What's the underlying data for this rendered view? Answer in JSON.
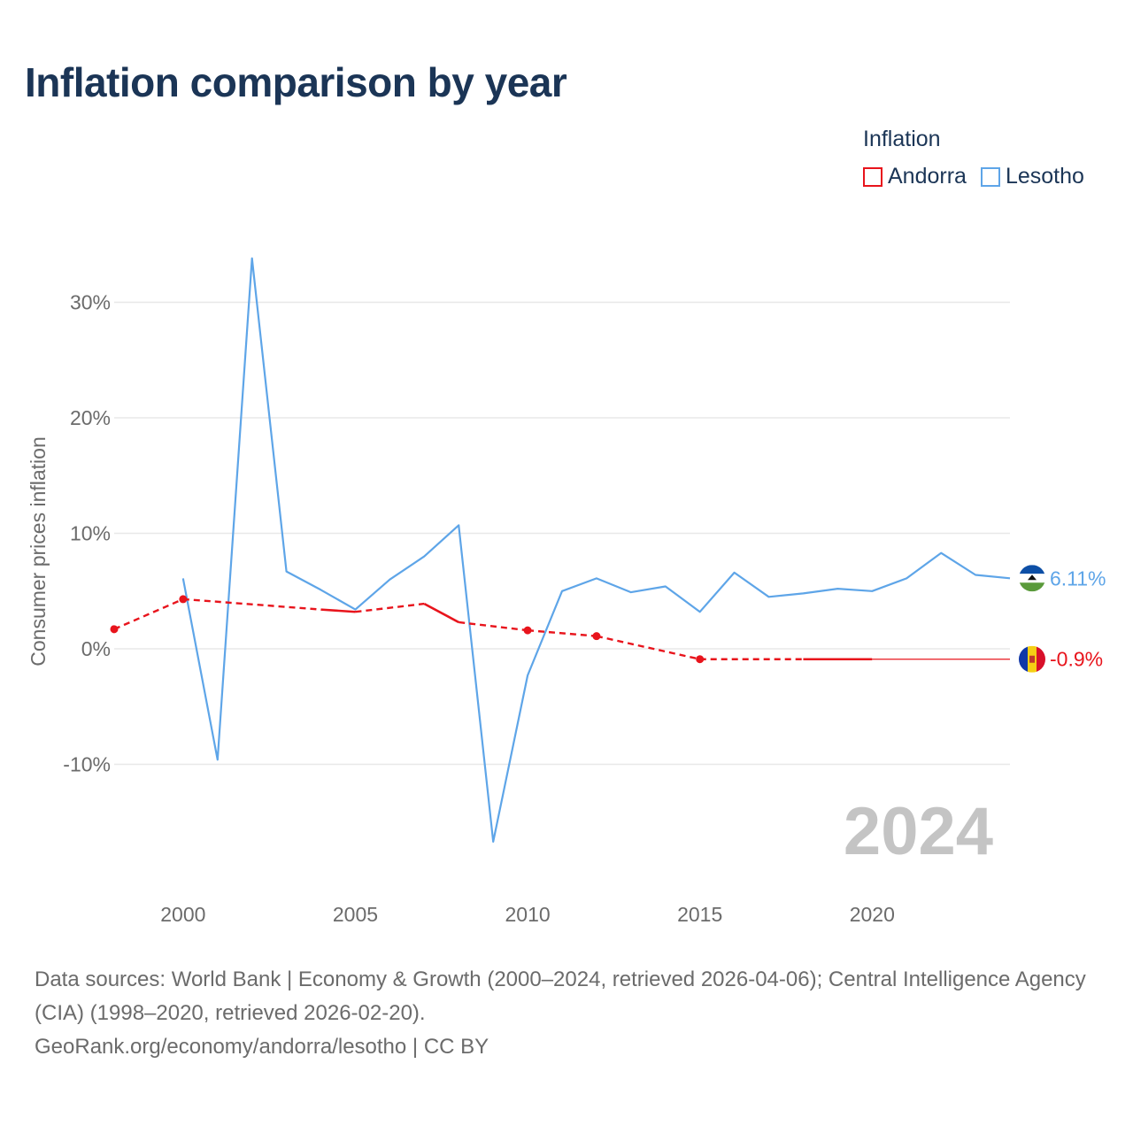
{
  "title": "Inflation comparison by year",
  "legend": {
    "title": "Inflation",
    "items": [
      {
        "label": "Andorra",
        "color": "#e8141c"
      },
      {
        "label": "Lesotho",
        "color": "#5ea5e8"
      }
    ]
  },
  "chart_data": {
    "type": "line",
    "title": "Inflation comparison by year",
    "ylabel": "Consumer prices inflation",
    "xlabel": "",
    "xlim": [
      1998,
      2024
    ],
    "ylim": [
      -19,
      34
    ],
    "y_ticks": [
      {
        "value": 30,
        "label": "30%"
      },
      {
        "value": 20,
        "label": "20%"
      },
      {
        "value": 10,
        "label": "10%"
      },
      {
        "value": 0,
        "label": "0%"
      },
      {
        "value": -10,
        "label": "-10%"
      }
    ],
    "x_ticks": [
      {
        "value": 2000,
        "label": "2000"
      },
      {
        "value": 2005,
        "label": "2005"
      },
      {
        "value": 2010,
        "label": "2010"
      },
      {
        "value": 2015,
        "label": "2015"
      },
      {
        "value": 2020,
        "label": "2020"
      }
    ],
    "grid": true,
    "year_watermark": "2024",
    "series": [
      {
        "name": "Lesotho",
        "color": "#5ea5e8",
        "end_label": "6.11%",
        "x": [
          2000,
          2001,
          2002,
          2003,
          2004,
          2005,
          2006,
          2007,
          2008,
          2009,
          2010,
          2011,
          2012,
          2013,
          2014,
          2015,
          2016,
          2017,
          2018,
          2019,
          2020,
          2021,
          2022,
          2023,
          2024
        ],
        "values": [
          6.1,
          -9.6,
          33.8,
          6.7,
          5.1,
          3.4,
          6.0,
          8.0,
          10.7,
          -16.7,
          -2.3,
          5.0,
          6.1,
          4.9,
          5.4,
          3.2,
          6.6,
          4.5,
          4.8,
          5.2,
          5.0,
          6.1,
          8.3,
          6.4,
          6.11
        ]
      },
      {
        "name": "Andorra",
        "color": "#e8141c",
        "end_label": "-0.9%",
        "x": [
          1998,
          2000,
          2005,
          2007,
          2008,
          2010,
          2012,
          2015,
          2018,
          2020,
          2024
        ],
        "values": [
          1.7,
          4.3,
          3.2,
          3.9,
          2.3,
          1.6,
          1.1,
          -0.9,
          -0.9,
          -0.9,
          -0.9
        ],
        "markers": [
          1998,
          2000,
          2010,
          2012,
          2015
        ]
      }
    ]
  },
  "footer": {
    "sources": "Data sources: World Bank | Economy & Growth (2000–2024, retrieved 2026-04-06); Central Intelligence Agency (CIA) (1998–2020, retrieved 2026-02-20).",
    "credit": "GeoRank.org/economy/andorra/lesotho | CC BY"
  }
}
